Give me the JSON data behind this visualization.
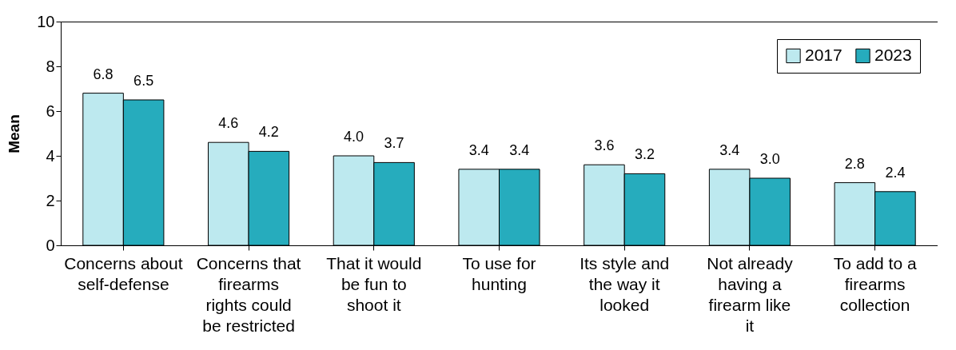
{
  "chart_data": {
    "type": "bar",
    "ylabel": "Mean",
    "categories": [
      "Concerns about self-defense",
      "Concerns that firearms rights could be restricted",
      "That it would be fun to shoot it",
      "To use for hunting",
      "Its style and the way it looked",
      "Not already having a firearm like it",
      "To add to a firearms collection"
    ],
    "series": [
      {
        "name": "2017",
        "color": "#bde9ef",
        "values": [
          6.8,
          4.6,
          4.0,
          3.4,
          3.6,
          3.4,
          2.8
        ],
        "value_labels": [
          "6.8",
          "4.6",
          "4.0",
          "3.4",
          "3.6",
          "3.4",
          "2.8"
        ]
      },
      {
        "name": "2023",
        "color": "#26acbd",
        "values": [
          6.5,
          4.2,
          3.7,
          3.4,
          3.2,
          3.0,
          2.4
        ],
        "value_labels": [
          "6.5",
          "4.2",
          "3.7",
          "3.4",
          "3.2",
          "3.0",
          "2.4"
        ]
      }
    ],
    "ylim": [
      0,
      10
    ],
    "yticks": [
      0,
      2,
      4,
      6,
      8,
      10
    ],
    "grid": false,
    "legend": "top right"
  }
}
